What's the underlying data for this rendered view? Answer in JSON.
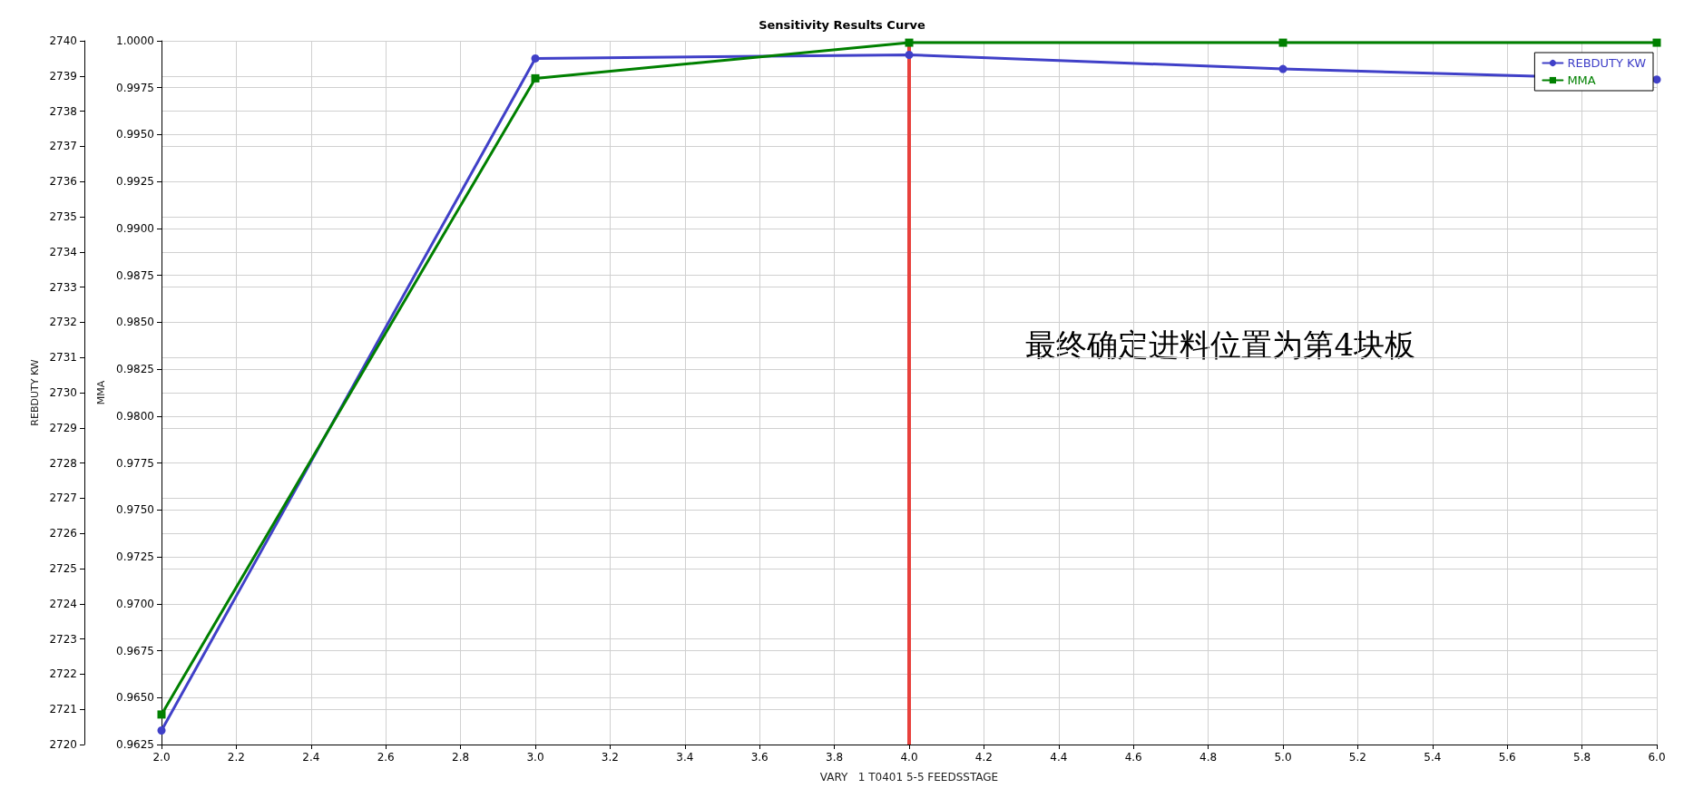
{
  "chart_data": {
    "type": "line",
    "title": "Sensitivity Results Curve",
    "xlabel": "VARY   1 T0401 5-5 FEEDSSTAGE",
    "ylabel": "REBDUTY KW",
    "y2label": "MMA",
    "x": [
      2,
      3,
      4,
      5,
      6
    ],
    "series": [
      {
        "name": "REBDUTY KW",
        "color": "#4040c8",
        "marker": "circle",
        "values": [
          2720.4,
          2739.5,
          2739.6,
          2739.2,
          2738.9
        ]
      },
      {
        "name": "MMA",
        "color": "#008000",
        "marker": "square",
        "axis": "y2",
        "values": [
          0.9641,
          0.998,
          0.9999,
          0.9999,
          0.9999
        ]
      }
    ],
    "xlim": [
      2,
      6
    ],
    "xticks": [
      {
        "value": 2,
        "label": "2.0"
      },
      2.2,
      2.4,
      2.6,
      2.8,
      {
        "value": 3,
        "label": "3.0"
      },
      3.2,
      3.4,
      3.6,
      3.8,
      {
        "value": 4,
        "label": "4.0"
      },
      4.2,
      4.4,
      4.6,
      4.8,
      {
        "value": 5,
        "label": "5.0"
      },
      5.2,
      5.4,
      5.6,
      5.8,
      {
        "value": 6,
        "label": "6.0"
      }
    ],
    "ylim": [
      2720,
      2740
    ],
    "yticks": [
      2720,
      2721,
      2722,
      2723,
      2724,
      2725,
      2726,
      2727,
      2728,
      2729,
      2730,
      2731,
      2732,
      2733,
      2734,
      2735,
      2736,
      2737,
      2738,
      2739,
      2740
    ],
    "y2lim": [
      0.9625,
      1.0
    ],
    "y2ticks": [
      0.9625,
      {
        "value": 0.965,
        "label": "0.9650"
      },
      0.9675,
      {
        "value": 0.97,
        "label": "0.9700"
      },
      0.9725,
      {
        "value": 0.975,
        "label": "0.9750"
      },
      0.9775,
      {
        "value": 0.98,
        "label": "0.9800"
      },
      0.9825,
      {
        "value": 0.985,
        "label": "0.9850"
      },
      0.9875,
      {
        "value": 0.99,
        "label": "0.9900"
      },
      0.9925,
      {
        "value": 0.995,
        "label": "0.9950"
      },
      0.9975,
      {
        "value": 1.0,
        "label": "1.0000"
      }
    ],
    "ref_lines": [
      {
        "axis": "x",
        "value": 4,
        "color": "#e8413c"
      }
    ],
    "annotations": [
      "最终确定进料位置为第4块板"
    ],
    "grid": true,
    "legend": "top right",
    "line_style": "solid"
  }
}
